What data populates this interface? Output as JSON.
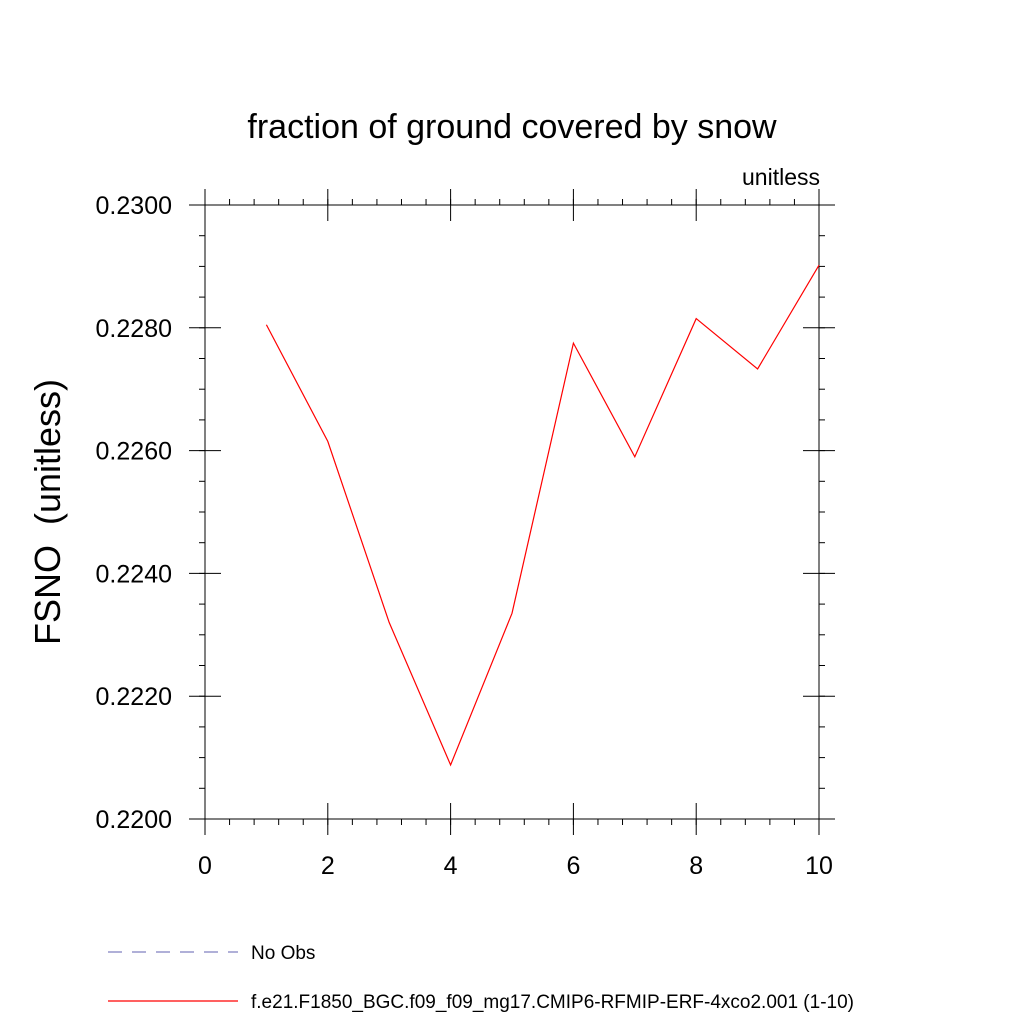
{
  "chart_data": {
    "type": "line",
    "title": "fraction of ground covered by snow",
    "units_label": "unitless",
    "ylabel": "FSNO  (unitless)",
    "xlabel": "",
    "xlim": [
      0,
      10
    ],
    "ylim": [
      0.22,
      0.23
    ],
    "x_ticks": [
      0,
      2,
      4,
      6,
      8,
      10
    ],
    "x_tick_labels": [
      "0",
      "2",
      "4",
      "6",
      "8",
      "10"
    ],
    "y_ticks": [
      0.22,
      0.222,
      0.224,
      0.226,
      0.228,
      0.23
    ],
    "y_tick_labels": [
      "0.2200",
      "0.2220",
      "0.2240",
      "0.2260",
      "0.2280",
      "0.2300"
    ],
    "grid": false,
    "legend_position": "bottom",
    "series": [
      {
        "name": "No Obs",
        "color": "#8080c0",
        "dash": "dashed",
        "x": [],
        "values": []
      },
      {
        "name": "f.e21.F1850_BGC.f09_f09_mg17.CMIP6-RFMIP-ERF-4xco2.001 (1-10)",
        "color": "#ff0000",
        "dash": "solid",
        "x": [
          1,
          2,
          3,
          4,
          5,
          6,
          7,
          8,
          9,
          10
        ],
        "values": [
          0.22805,
          0.22615,
          0.2232,
          0.22088,
          0.22335,
          0.22775,
          0.2259,
          0.22815,
          0.22733,
          0.22902
        ]
      }
    ]
  }
}
